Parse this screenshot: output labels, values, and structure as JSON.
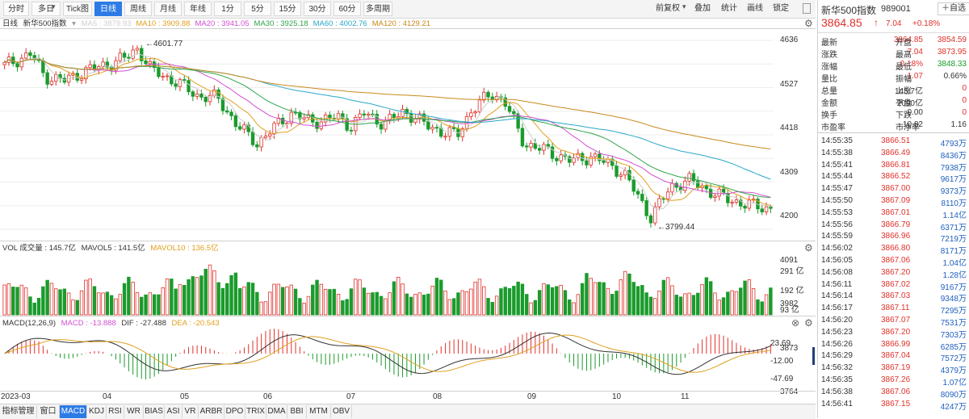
{
  "toolbar": {
    "left_buttons": [
      "分时",
      "多日",
      "Tick图",
      "日线",
      "周线",
      "月线",
      "年线",
      "1分",
      "5分",
      "15分",
      "30分",
      "60分",
      "多周期"
    ],
    "active": "日线",
    "dropdown_mark": "▾",
    "right_buttons": [
      "前复权",
      "叠加",
      "统计",
      "画线",
      "锁定"
    ]
  },
  "main_panel": {
    "period": "日线",
    "name": "新华500指数",
    "ma": [
      {
        "label": "MA5 : 3879.93",
        "color": "#cfcfcf"
      },
      {
        "label": "MA10 : 3909.88",
        "color": "#e0a020"
      },
      {
        "label": "MA20 : 3941.05",
        "color": "#d24fd2"
      },
      {
        "label": "MA30 : 3925.18",
        "color": "#2ea44a"
      },
      {
        "label": "MA60 : 4002.76",
        "color": "#2aa7c9"
      },
      {
        "label": "MA120 : 4129.21",
        "color": "#c98a1c"
      }
    ],
    "y_labels": [
      "4636",
      "4527",
      "4418",
      "4309",
      "4200",
      "4091",
      "3982",
      "3873",
      "3764"
    ],
    "high_note": "←4601.77",
    "low_note": "←3799.44"
  },
  "vol_panel": {
    "title": "VOL 成交量 : 145.7亿",
    "mavol5": "MAVOL5 : 141.5亿",
    "mavol10": "MAVOL10 : 136.5亿",
    "y_labels": [
      "291 亿",
      "192 亿",
      "93 亿"
    ]
  },
  "macd_panel": {
    "title": "MACD(12,26,9)",
    "macd": "MACD : -13.888",
    "dif": "DIF : -27.488",
    "dea": "DEA : -20.543",
    "y_labels": [
      "23.69",
      "-12.00",
      "-47.69"
    ]
  },
  "x_axis": [
    "2023-03",
    "04",
    "05",
    "06",
    "07",
    "08",
    "09",
    "10",
    "11"
  ],
  "bottom_tabs": [
    "指标管理",
    "窗口",
    "MACD",
    "KDJ",
    "RSI",
    "WR",
    "BIAS",
    "ASI",
    "VR",
    "ARBR",
    "DPO",
    "TRIX",
    "DMA",
    "BBI",
    "MTM",
    "OBV"
  ],
  "bottom_active": "MACD",
  "colors": {
    "up": "#e0312b",
    "down": "#1a9b2c",
    "accent": "#2d7be5"
  },
  "right_panel": {
    "title": "新华500指数",
    "code": "989001",
    "add_label": "＋自选",
    "price": "3864.85",
    "arrow": "↑",
    "change": "7.04",
    "pct": "+0.18%",
    "quote": [
      [
        "最新",
        "3864.85",
        "开盘",
        "3854.59"
      ],
      [
        "涨跌",
        "7.04",
        "最高",
        "3873.95"
      ],
      [
        "涨幅",
        "0.18%",
        "最低",
        "3848.33"
      ],
      [
        "量比",
        "1.07",
        "振幅",
        "0.66%"
      ],
      [
        "总量",
        "145.7亿",
        "上涨",
        "0"
      ],
      [
        "金额",
        "2090亿",
        "平盘",
        "0"
      ],
      [
        "换手",
        "0.00",
        "下跌",
        "0"
      ],
      [
        "市盈率",
        "10.82",
        "市净率",
        "1.16"
      ]
    ],
    "ticks": [
      [
        "14:55:35",
        "3866.51",
        "4793万"
      ],
      [
        "14:55:38",
        "3866.49",
        "8436万"
      ],
      [
        "14:55:41",
        "3866.81",
        "7938万"
      ],
      [
        "14:55:44",
        "3866.52",
        "9617万"
      ],
      [
        "14:55:47",
        "3867.00",
        "9373万"
      ],
      [
        "14:55:50",
        "3867.09",
        "8110万"
      ],
      [
        "14:55:53",
        "3867.01",
        "1.14亿"
      ],
      [
        "14:55:56",
        "3866.79",
        "6371万"
      ],
      [
        "14:55:59",
        "3866.96",
        "7219万"
      ],
      [
        "14:56:02",
        "3866.80",
        "8171万"
      ],
      [
        "14:56:05",
        "3867.06",
        "1.04亿"
      ],
      [
        "14:56:08",
        "3867.20",
        "1.28亿"
      ],
      [
        "14:56:11",
        "3867.02",
        "9167万"
      ],
      [
        "14:56:14",
        "3867.03",
        "9348万"
      ],
      [
        "14:56:17",
        "3867.11",
        "7295万"
      ],
      [
        "14:56:20",
        "3867.07",
        "7531万"
      ],
      [
        "14:56:23",
        "3867.20",
        "7303万"
      ],
      [
        "14:56:26",
        "3866.99",
        "6285万"
      ],
      [
        "14:56:29",
        "3867.04",
        "7572万"
      ],
      [
        "14:56:32",
        "3867.19",
        "4379万"
      ],
      [
        "14:56:35",
        "3867.26",
        "1.07亿"
      ],
      [
        "14:56:38",
        "3867.06",
        "8090万"
      ],
      [
        "14:56:41",
        "3867.15",
        "4247万"
      ]
    ]
  },
  "chart_data": {
    "type": "candlestick",
    "title": "新华500指数 日线",
    "x_range": [
      "2023-03",
      "11"
    ],
    "price_range": [
      3764,
      4636
    ],
    "high": 4601.77,
    "low": 3799.44,
    "last": 3864.85
  }
}
